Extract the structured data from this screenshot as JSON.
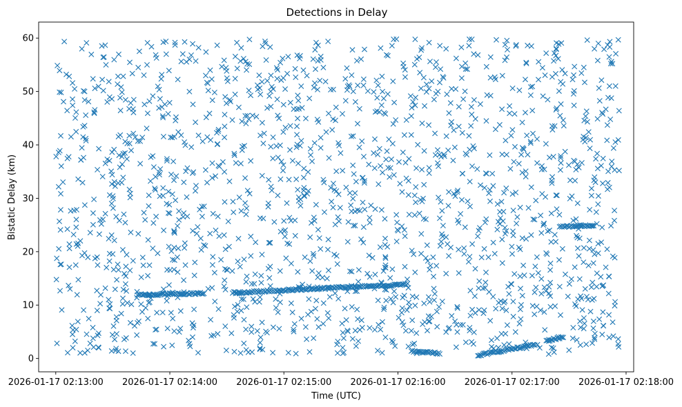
{
  "chart_data": {
    "type": "scatter",
    "title": "Detections in Delay",
    "xlabel": "Time (UTC)",
    "ylabel": "Bistatic Delay (km)",
    "marker": "x",
    "color": "#1f77b4",
    "grid": false,
    "x_unit": "time",
    "xlim": [
      "2026-01-17 02:12:51",
      "2026-01-17 02:18:04"
    ],
    "ylim": [
      -2.5,
      63
    ],
    "x_ticks": [
      "2026-01-17 02:13:00",
      "2026-01-17 02:14:00",
      "2026-01-17 02:15:00",
      "2026-01-17 02:16:00",
      "2026-01-17 02:17:00",
      "2026-01-17 02:18:00"
    ],
    "y_ticks": [
      0,
      10,
      20,
      30,
      40,
      50,
      60
    ],
    "data_start": "2026-01-17 02:13:00",
    "data_end": "2026-01-17 02:17:57",
    "clutter_points": 1700,
    "tracks": [
      {
        "x_start": "2026-01-17 02:14:33",
        "x_end": "2026-01-17 02:16:05",
        "y_start": 12.3,
        "y_end": 13.9
      },
      {
        "x_start": "2026-01-17 02:13:43",
        "x_end": "2026-01-17 02:14:18",
        "y_start": 11.9,
        "y_end": 12.2
      },
      {
        "x_start": "2026-01-17 02:16:42",
        "x_end": "2026-01-17 02:17:12",
        "y_start": 0.6,
        "y_end": 2.6
      },
      {
        "x_start": "2026-01-17 02:17:18",
        "x_end": "2026-01-17 02:17:27",
        "y_start": 3.3,
        "y_end": 4.0
      },
      {
        "x_start": "2026-01-17 02:17:25",
        "x_end": "2026-01-17 02:17:43",
        "y_start": 24.7,
        "y_end": 24.9
      },
      {
        "x_start": "2026-01-17 02:16:07",
        "x_end": "2026-01-17 02:16:22",
        "y_start": 1.4,
        "y_end": 0.9
      }
    ]
  }
}
